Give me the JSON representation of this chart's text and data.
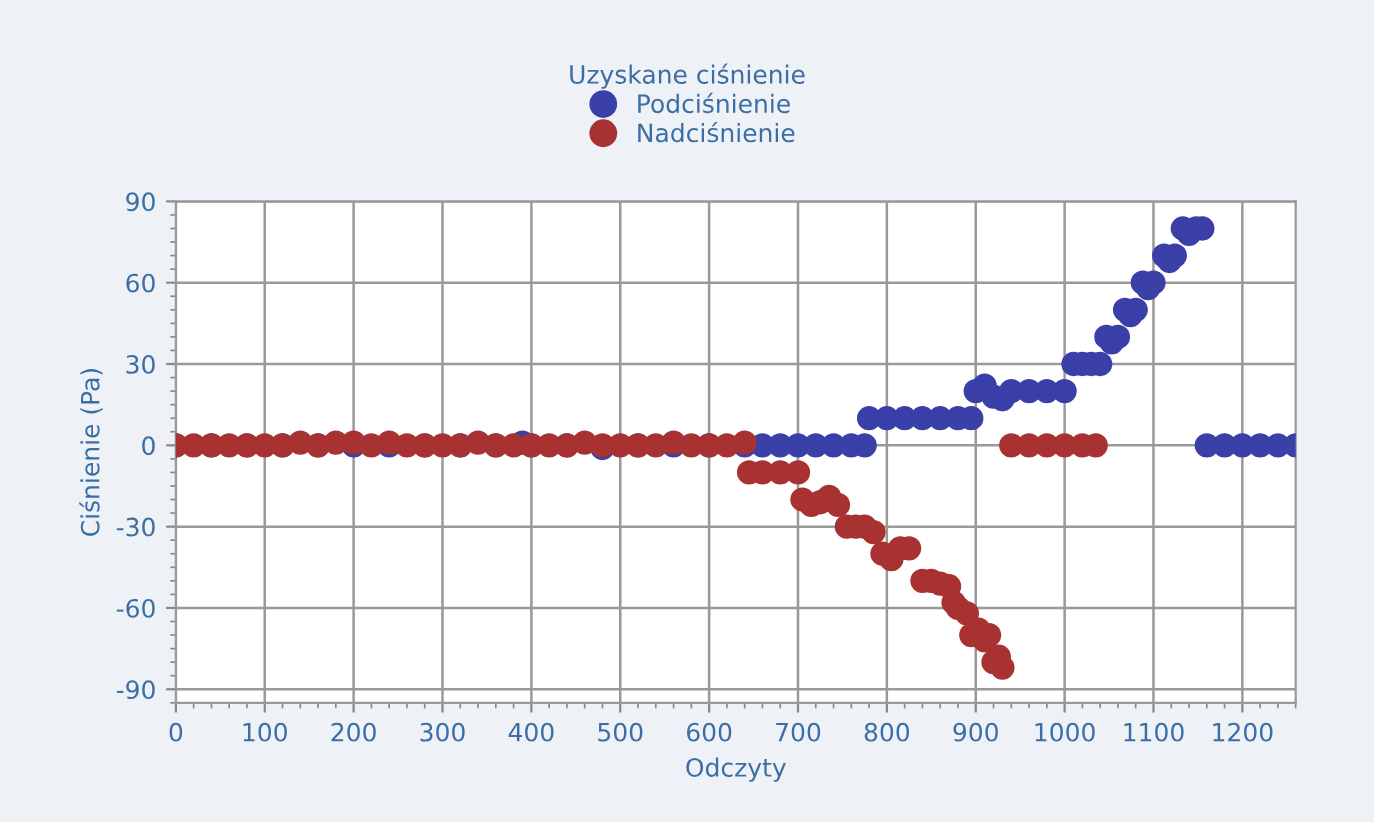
{
  "chart_data": {
    "type": "scatter",
    "legend_title": "Uzyskane ciśnienie",
    "xlabel": "Odczyty",
    "ylabel": "Ciśnienie (Pa)",
    "xlim": [
      0,
      1260
    ],
    "ylim": [
      -95,
      90
    ],
    "xticks": [
      0,
      100,
      200,
      300,
      400,
      500,
      600,
      700,
      800,
      900,
      1000,
      1100,
      1200
    ],
    "yticks": [
      -90,
      -60,
      -30,
      0,
      30,
      60,
      90
    ],
    "grid": true,
    "legend": "top",
    "marker": "circle",
    "series": [
      {
        "name": "Podciśnienie",
        "color": "#3b3fa8",
        "x": [
          0,
          40,
          80,
          120,
          160,
          200,
          240,
          280,
          320,
          360,
          390,
          400,
          440,
          480,
          520,
          560,
          600,
          640,
          660,
          680,
          700,
          720,
          740,
          760,
          775,
          780,
          800,
          820,
          840,
          860,
          880,
          895,
          900,
          910,
          920,
          930,
          940,
          960,
          980,
          1000,
          1010,
          1020,
          1030,
          1040,
          1047,
          1053,
          1060,
          1068,
          1074,
          1080,
          1088,
          1094,
          1100,
          1112,
          1118,
          1124,
          1133,
          1140,
          1148,
          1155,
          1160,
          1180,
          1200,
          1220,
          1240,
          1260
        ],
        "values": [
          0,
          0,
          0,
          0,
          0,
          0,
          0,
          0,
          0,
          0,
          1,
          0,
          0,
          -1,
          0,
          0,
          0,
          0,
          0,
          0,
          0,
          0,
          0,
          0,
          0,
          10,
          10,
          10,
          10,
          10,
          10,
          10,
          20,
          22,
          18,
          17,
          20,
          20,
          20,
          20,
          30,
          30,
          30,
          30,
          40,
          38,
          40,
          50,
          48,
          50,
          60,
          58,
          60,
          70,
          68,
          70,
          80,
          78,
          80,
          80,
          0,
          0,
          0,
          0,
          0,
          0
        ]
      },
      {
        "name": "Nadciśnienie",
        "color": "#a83232",
        "x": [
          0,
          20,
          40,
          60,
          80,
          100,
          120,
          140,
          160,
          180,
          200,
          220,
          240,
          260,
          280,
          300,
          320,
          340,
          360,
          380,
          400,
          420,
          440,
          460,
          480,
          500,
          520,
          540,
          560,
          580,
          600,
          620,
          640,
          645,
          660,
          680,
          700,
          705,
          715,
          725,
          735,
          745,
          755,
          765,
          775,
          785,
          795,
          805,
          815,
          825,
          840,
          850,
          860,
          870,
          875,
          880,
          890,
          895,
          903,
          910,
          915,
          920,
          926,
          930,
          940,
          960,
          980,
          1000,
          1020,
          1035
        ],
        "values": [
          0,
          0,
          0,
          0,
          0,
          0,
          0,
          1,
          0,
          1,
          1,
          0,
          1,
          0,
          0,
          0,
          0,
          1,
          0,
          0,
          0,
          0,
          0,
          1,
          0,
          0,
          0,
          0,
          1,
          0,
          0,
          0,
          1,
          -10,
          -10,
          -10,
          -10,
          -20,
          -22,
          -21,
          -19,
          -22,
          -30,
          -30,
          -30,
          -32,
          -40,
          -42,
          -38,
          -38,
          -50,
          -50,
          -51,
          -52,
          -58,
          -60,
          -62,
          -70,
          -68,
          -72,
          -70,
          -80,
          -78,
          -82,
          0,
          0,
          0,
          0,
          0,
          0
        ]
      }
    ]
  }
}
